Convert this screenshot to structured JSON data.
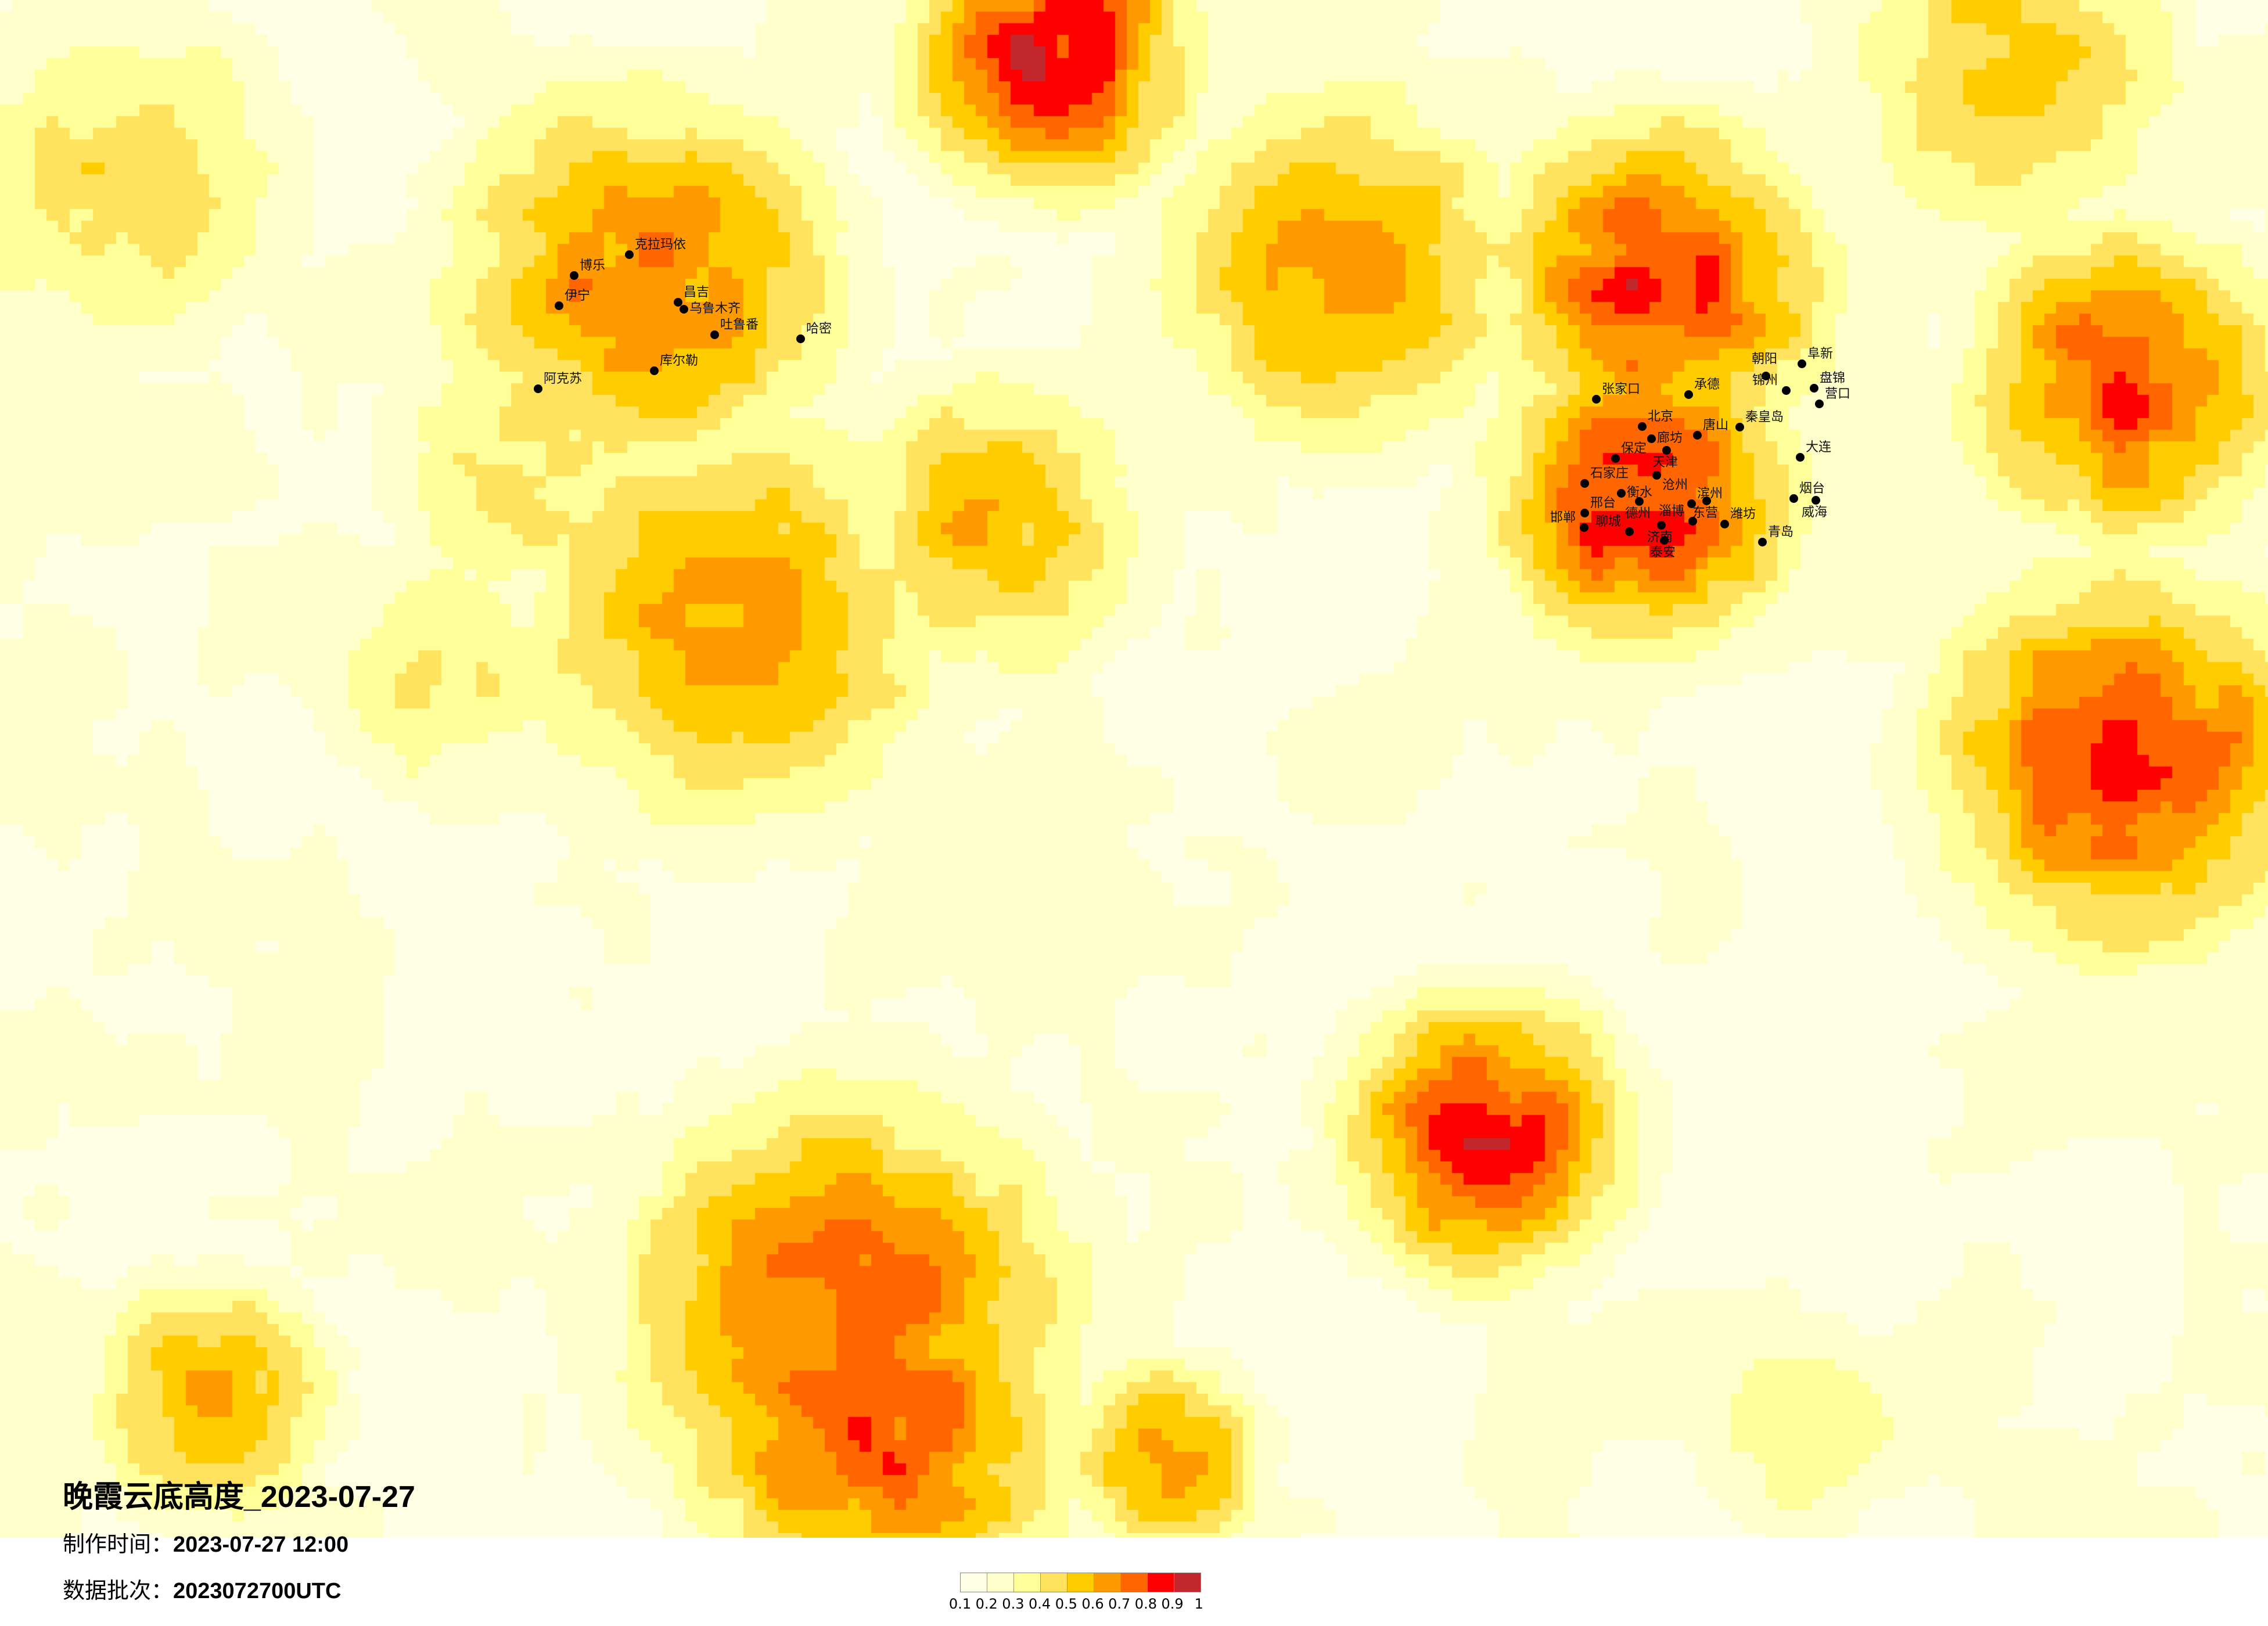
{
  "title": "晚霞云底高度_2023-07-27",
  "production_time": {
    "label": "制作时间：",
    "value": "2023-07-27 12:00"
  },
  "data_batch": {
    "label": "数据批次：",
    "value": "2023072700UTC"
  },
  "legend": {
    "labels": [
      "0.1",
      "0.2",
      "0.3",
      "0.4",
      "0.5",
      "0.6",
      "0.7",
      "0.8",
      "0.9",
      "1"
    ],
    "colors": [
      "#FFFFE6",
      "#FFFFCC",
      "#FFFF99",
      "#FFE35E",
      "#FFCC00",
      "#FF9900",
      "#FF6600",
      "#FF0000",
      "#C1272D"
    ]
  },
  "background_color": "#FFFFE6",
  "cities": [
    "张家口",
    "北京",
    "廊坊",
    "天津",
    "保定",
    "承德",
    "唐山",
    "秦皇岛",
    "石家庄",
    "衡水",
    "沧州",
    "德州",
    "滨州",
    "东营",
    "济南",
    "淄博",
    "潍坊",
    "泰安",
    "聊城",
    "青岛",
    "烟台",
    "威海",
    "大连",
    "营口",
    "盘锦",
    "锦州",
    "朝阳",
    "阜新",
    "邢台",
    "邯郸",
    "克拉玛依",
    "博乐",
    "伊宁",
    "昌吉",
    "乌鲁木齐",
    "吐鲁番",
    "哈密",
    "库尔勒",
    "阿克苏"
  ]
}
